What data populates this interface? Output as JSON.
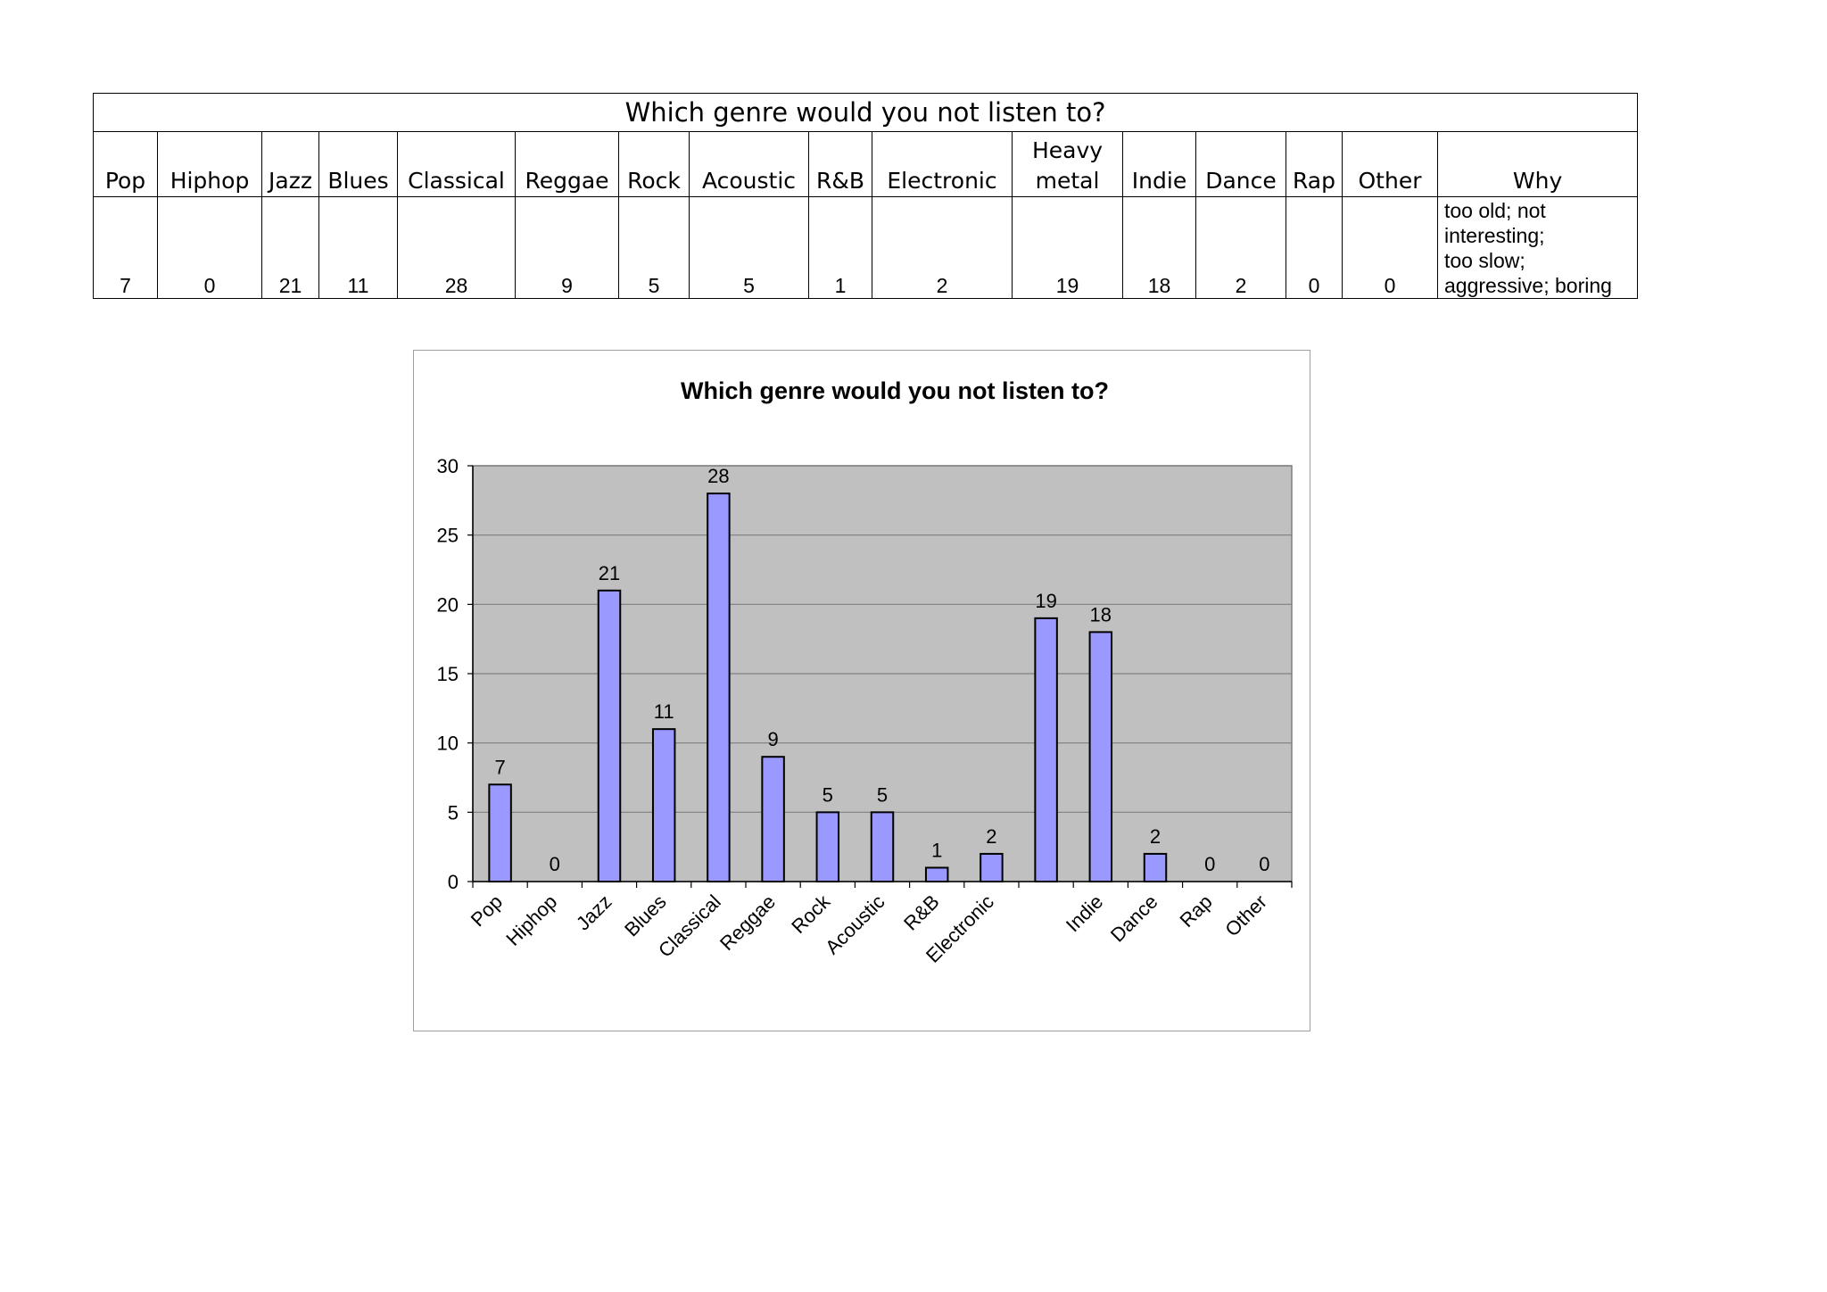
{
  "table": {
    "title": "Which genre would you not listen to?",
    "headers": [
      "Pop",
      "Hiphop",
      "Jazz",
      "Blues",
      "Classical",
      "Reggae",
      "Rock",
      "Acoustic",
      "R&B",
      "Electronic",
      "Heavy\nmetal",
      "Indie",
      "Dance",
      "Rap",
      "Other",
      "Why"
    ],
    "values": [
      "7",
      "0",
      "21",
      "11",
      "28",
      "9",
      "5",
      "5",
      "1",
      "2",
      "19",
      "18",
      "2",
      "0",
      "0"
    ],
    "why": "too old; not\ninteresting;\ntoo slow;\naggressive; boring"
  },
  "chart_data": {
    "type": "bar",
    "title": "Which genre would you not listen to?",
    "categories": [
      "Pop",
      "Hiphop",
      "Jazz",
      "Blues",
      "Classical",
      "Reggae",
      "Rock",
      "Acoustic",
      "R&B",
      "Electronic",
      "",
      "Indie",
      "Dance",
      "Rap",
      "Other"
    ],
    "values": [
      7,
      0,
      21,
      11,
      28,
      9,
      5,
      5,
      1,
      2,
      19,
      18,
      2,
      0,
      0
    ],
    "xlabel": "",
    "ylabel": "",
    "ylim": [
      0,
      30
    ],
    "yticks": [
      0,
      5,
      10,
      15,
      20,
      25,
      30
    ],
    "grid": true,
    "legend": "none",
    "colors": {
      "bar_fill": "#9999ff",
      "bar_stroke": "#000000",
      "plot_bg": "#c0c0c0",
      "gridline": "#7f7f7f"
    }
  }
}
